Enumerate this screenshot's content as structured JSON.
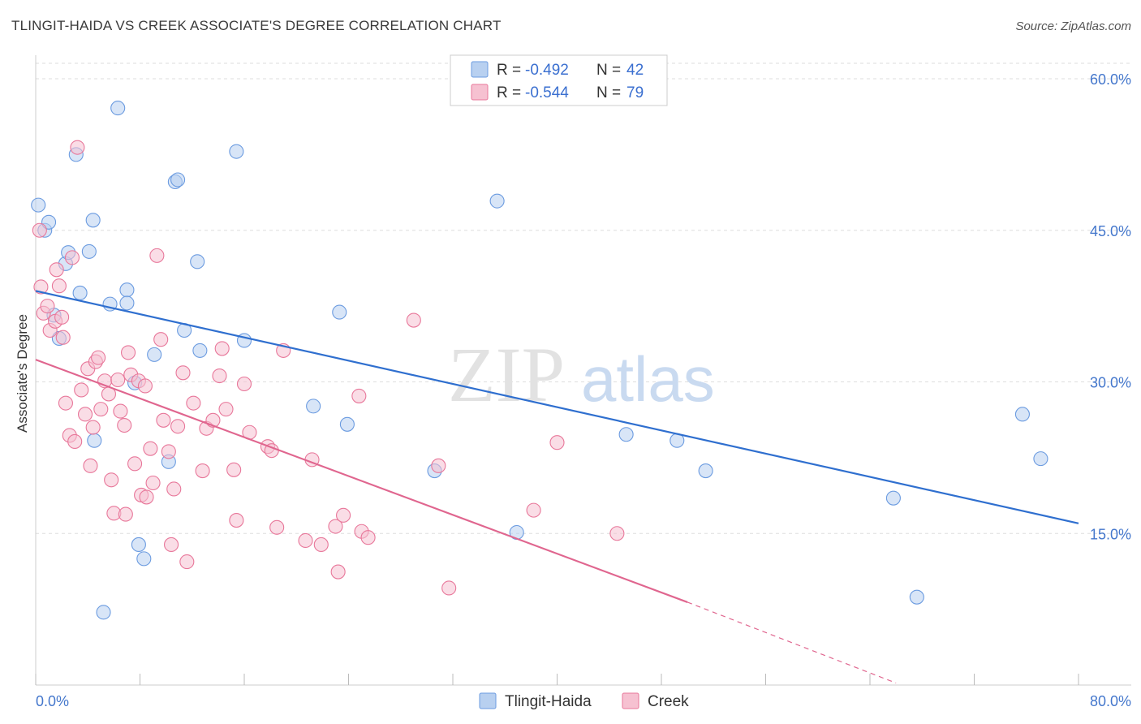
{
  "title": "TLINGIT-HAIDA VS CREEK ASSOCIATE'S DEGREE CORRELATION CHART",
  "source": "Source: ZipAtlas.com",
  "chart_data": {
    "type": "scatter",
    "title": "TLINGIT-HAIDA VS CREEK ASSOCIATE'S DEGREE CORRELATION CHART",
    "xlabel": "",
    "ylabel": "Associate's Degree",
    "xlim": [
      0,
      80
    ],
    "ylim": [
      0,
      62
    ],
    "x_tick_labels": [
      "0.0%",
      "80.0%"
    ],
    "y_ticks": [
      15,
      30,
      45,
      60
    ],
    "y_tick_labels": [
      "15.0%",
      "30.0%",
      "45.0%",
      "60.0%"
    ],
    "grid": true,
    "watermark": "ZIPatlas",
    "legend": {
      "r_label": "R = ",
      "n_label": "N = ",
      "entries": [
        {
          "name": "Tlingit-Haida",
          "r": "-0.492",
          "n": "42",
          "color": "#6b9be0",
          "fill": "#b8d0f0"
        },
        {
          "name": "Creek",
          "r": "-0.544",
          "n": "79",
          "color": "#e8779a",
          "fill": "#f6c1d1"
        }
      ]
    },
    "series": [
      {
        "name": "Tlingit-Haida",
        "color": "#6b9be0",
        "fill": "#b8d0f0",
        "trend": {
          "x0": 0,
          "y0": 39.0,
          "x1": 80,
          "y1": 16.0
        },
        "points": [
          [
            0.2,
            47.5
          ],
          [
            0.7,
            45.0
          ],
          [
            1.0,
            45.8
          ],
          [
            1.4,
            36.6
          ],
          [
            1.8,
            34.3
          ],
          [
            2.3,
            41.7
          ],
          [
            2.5,
            42.8
          ],
          [
            3.1,
            52.5
          ],
          [
            3.4,
            38.8
          ],
          [
            4.1,
            42.9
          ],
          [
            4.4,
            46.0
          ],
          [
            4.5,
            24.2
          ],
          [
            5.2,
            7.2
          ],
          [
            5.7,
            37.7
          ],
          [
            6.3,
            57.1
          ],
          [
            7.0,
            39.1
          ],
          [
            7.0,
            37.8
          ],
          [
            7.6,
            29.9
          ],
          [
            7.9,
            13.9
          ],
          [
            8.3,
            12.5
          ],
          [
            9.1,
            32.7
          ],
          [
            10.2,
            22.1
          ],
          [
            10.7,
            49.8
          ],
          [
            10.9,
            50.0
          ],
          [
            11.4,
            35.1
          ],
          [
            12.4,
            41.9
          ],
          [
            12.6,
            33.1
          ],
          [
            15.4,
            52.8
          ],
          [
            16.0,
            34.1
          ],
          [
            21.3,
            27.6
          ],
          [
            23.3,
            36.9
          ],
          [
            23.9,
            25.8
          ],
          [
            30.6,
            21.2
          ],
          [
            35.4,
            47.9
          ],
          [
            36.9,
            15.1
          ],
          [
            45.3,
            24.8
          ],
          [
            49.2,
            24.2
          ],
          [
            51.4,
            21.2
          ],
          [
            65.8,
            18.5
          ],
          [
            67.6,
            8.7
          ],
          [
            75.7,
            26.8
          ],
          [
            77.1,
            22.4
          ]
        ]
      },
      {
        "name": "Creek",
        "color": "#e8779a",
        "fill": "#f6c1d1",
        "trend": {
          "x0": 0,
          "y0": 32.2,
          "x1": 50,
          "y1": 8.2
        },
        "trend_ext": {
          "x0": 50,
          "y0": 8.2,
          "x1": 66,
          "y1": 0.2
        },
        "points": [
          [
            0.3,
            45.0
          ],
          [
            0.4,
            39.4
          ],
          [
            0.6,
            36.8
          ],
          [
            0.9,
            37.5
          ],
          [
            1.1,
            35.1
          ],
          [
            1.5,
            36.0
          ],
          [
            1.6,
            41.1
          ],
          [
            1.8,
            39.5
          ],
          [
            2.0,
            36.4
          ],
          [
            2.1,
            34.4
          ],
          [
            2.3,
            27.9
          ],
          [
            2.6,
            24.7
          ],
          [
            2.8,
            42.3
          ],
          [
            3.0,
            24.1
          ],
          [
            3.2,
            53.2
          ],
          [
            3.5,
            29.2
          ],
          [
            3.8,
            26.8
          ],
          [
            4.0,
            31.3
          ],
          [
            4.2,
            21.7
          ],
          [
            4.4,
            25.5
          ],
          [
            4.6,
            32.0
          ],
          [
            4.8,
            32.4
          ],
          [
            5.0,
            27.3
          ],
          [
            5.3,
            30.1
          ],
          [
            5.6,
            28.8
          ],
          [
            5.8,
            20.3
          ],
          [
            6.0,
            17.0
          ],
          [
            6.3,
            30.2
          ],
          [
            6.5,
            27.1
          ],
          [
            6.8,
            25.7
          ],
          [
            6.9,
            16.9
          ],
          [
            7.1,
            32.9
          ],
          [
            7.3,
            30.7
          ],
          [
            7.6,
            21.9
          ],
          [
            7.9,
            30.1
          ],
          [
            8.1,
            18.8
          ],
          [
            8.4,
            29.6
          ],
          [
            8.5,
            18.6
          ],
          [
            8.8,
            23.4
          ],
          [
            9.0,
            20.0
          ],
          [
            9.3,
            42.5
          ],
          [
            9.6,
            34.2
          ],
          [
            9.8,
            26.2
          ],
          [
            10.2,
            23.1
          ],
          [
            10.4,
            13.9
          ],
          [
            10.6,
            19.4
          ],
          [
            10.9,
            25.6
          ],
          [
            11.3,
            30.9
          ],
          [
            11.6,
            12.2
          ],
          [
            12.1,
            27.9
          ],
          [
            12.8,
            21.2
          ],
          [
            13.1,
            25.4
          ],
          [
            13.6,
            26.2
          ],
          [
            14.1,
            30.6
          ],
          [
            14.3,
            33.3
          ],
          [
            14.6,
            27.3
          ],
          [
            15.2,
            21.3
          ],
          [
            15.4,
            16.3
          ],
          [
            16.0,
            29.8
          ],
          [
            16.4,
            25.0
          ],
          [
            17.8,
            23.6
          ],
          [
            18.1,
            23.2
          ],
          [
            18.5,
            15.6
          ],
          [
            19.0,
            33.1
          ],
          [
            20.7,
            14.3
          ],
          [
            21.2,
            22.3
          ],
          [
            21.9,
            13.9
          ],
          [
            23.0,
            15.7
          ],
          [
            23.2,
            11.2
          ],
          [
            23.6,
            16.8
          ],
          [
            24.8,
            28.6
          ],
          [
            25.0,
            15.2
          ],
          [
            25.5,
            14.6
          ],
          [
            29.0,
            36.1
          ],
          [
            30.9,
            21.7
          ],
          [
            31.7,
            9.6
          ],
          [
            38.2,
            17.3
          ],
          [
            40.0,
            24.0
          ],
          [
            44.6,
            15.0
          ]
        ]
      }
    ]
  },
  "bottom_legend": [
    {
      "label": "Tlingit-Haida"
    },
    {
      "label": "Creek"
    }
  ]
}
